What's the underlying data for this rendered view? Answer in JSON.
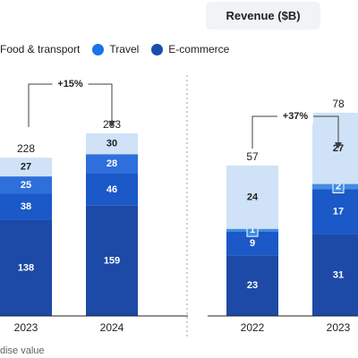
{
  "header": {
    "revenue_label": "Revenue ($B)"
  },
  "legend": [
    {
      "label": "Food & transport",
      "color": "#c6dcf6"
    },
    {
      "label": "Travel",
      "color": "#1a73e8"
    },
    {
      "label": "E-commerce",
      "color": "#1a4fa8"
    }
  ],
  "footnote": "dise value",
  "colors": {
    "food_transport": "#cfe2f7",
    "other": "#3f8de0",
    "travel": "#2f6fdc",
    "ecommerce_light": "#1b58c8",
    "ecommerce": "#1c4aa6",
    "axis": "#202124",
    "divider": "#9aa0a6",
    "inner_label": "#ffffff",
    "outer_label": "#202124"
  },
  "chart_data": [
    {
      "type": "bar",
      "stacked": true,
      "categories": [
        "2023",
        "2024"
      ],
      "series": [
        {
          "values": [
            138,
            159
          ]
        },
        {
          "values": [
            38,
            46
          ]
        },
        {
          "values": [
            25,
            28
          ]
        },
        {
          "values": [
            27,
            30
          ]
        }
      ],
      "totals": [
        228,
        263
      ],
      "growth_annotation": "+15%",
      "ylim": [
        0,
        263
      ]
    },
    {
      "type": "bar",
      "stacked": true,
      "categories": [
        "2022",
        "2023"
      ],
      "series": [
        {
          "values": [
            23,
            31
          ]
        },
        {
          "values": [
            9,
            17
          ]
        },
        {
          "values": [
            1,
            2
          ]
        },
        {
          "values": [
            24,
            27
          ]
        }
      ],
      "totals": [
        57,
        78
      ],
      "growth_annotation": "+37%",
      "ylim": [
        0,
        78
      ]
    }
  ]
}
